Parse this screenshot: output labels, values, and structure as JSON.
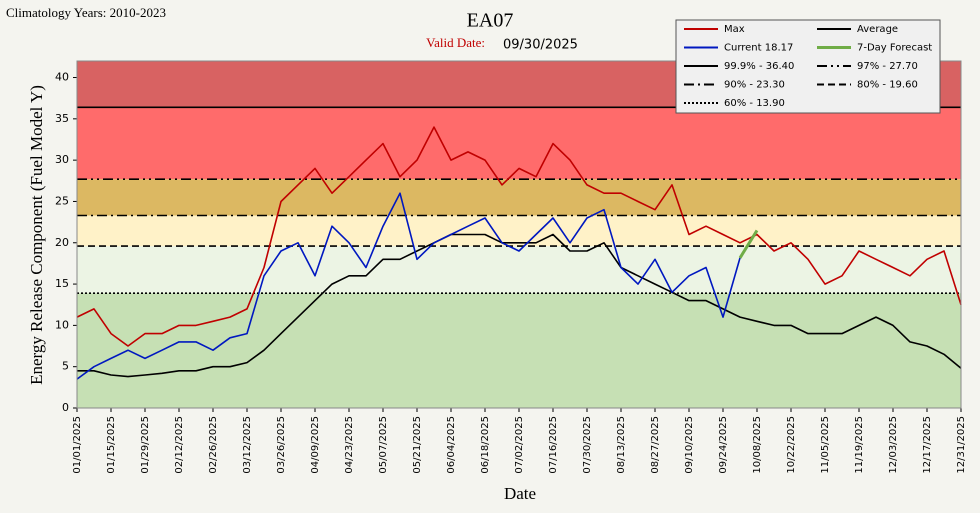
{
  "chart_data": {
    "type": "line",
    "corner_note": "Climatology Years: 2010-2023",
    "title": "EA07",
    "valid_date_label": "Valid Date:",
    "valid_date": "09/30/2025",
    "xlabel": "Date",
    "ylabel": "Energy Release Component (Fuel Model Y)",
    "x": [
      "01/01/2025",
      "01/08/2025",
      "01/15/2025",
      "01/22/2025",
      "01/29/2025",
      "02/05/2025",
      "02/12/2025",
      "02/19/2025",
      "02/26/2025",
      "03/05/2025",
      "03/12/2025",
      "03/19/2025",
      "03/26/2025",
      "04/02/2025",
      "04/09/2025",
      "04/16/2025",
      "04/23/2025",
      "04/30/2025",
      "05/07/2025",
      "05/14/2025",
      "05/21/2025",
      "05/28/2025",
      "06/04/2025",
      "06/11/2025",
      "06/18/2025",
      "06/25/2025",
      "07/02/2025",
      "07/09/2025",
      "07/16/2025",
      "07/23/2025",
      "07/30/2025",
      "08/06/2025",
      "08/13/2025",
      "08/20/2025",
      "08/27/2025",
      "09/03/2025",
      "09/10/2025",
      "09/17/2025",
      "09/24/2025",
      "10/01/2025",
      "10/08/2025",
      "10/15/2025",
      "10/22/2025",
      "10/29/2025",
      "11/05/2025",
      "11/12/2025",
      "11/19/2025",
      "11/26/2025",
      "12/03/2025",
      "12/10/2025",
      "12/17/2025",
      "12/24/2025",
      "12/31/2025"
    ],
    "xlim": [
      "01/01/2025",
      "12/31/2025"
    ],
    "xticks": [
      "01/01/2025",
      "01/15/2025",
      "01/29/2025",
      "02/12/2025",
      "02/26/2025",
      "03/12/2025",
      "03/26/2025",
      "04/09/2025",
      "04/23/2025",
      "05/07/2025",
      "05/21/2025",
      "06/04/2025",
      "06/18/2025",
      "07/02/2025",
      "07/16/2025",
      "07/30/2025",
      "08/13/2025",
      "08/27/2025",
      "09/10/2025",
      "09/24/2025",
      "10/08/2025",
      "10/22/2025",
      "11/05/2025",
      "11/19/2025",
      "12/03/2025",
      "12/17/2025",
      "12/31/2025"
    ],
    "ylim": [
      0,
      42
    ],
    "yticks": [
      0,
      5,
      10,
      15,
      20,
      25,
      30,
      35,
      40
    ],
    "band_colors": [
      "#c6e0b4",
      "#ecf4e4",
      "#fff2c8",
      "#dcb862",
      "#ff6b6b",
      "#d86262"
    ],
    "series": [
      {
        "name": "Max",
        "color": "#c00000",
        "width": 1.6,
        "values": [
          11,
          12,
          9,
          7.5,
          9,
          9,
          10,
          10,
          10.5,
          11,
          12,
          17,
          25,
          27,
          29,
          26,
          28,
          30,
          32,
          28,
          30,
          34,
          30,
          31,
          30,
          27,
          29,
          28,
          32,
          30,
          27,
          26,
          26,
          25,
          24,
          27,
          21,
          22,
          21,
          20,
          21,
          19,
          20,
          18,
          15,
          16,
          19,
          18,
          17,
          16,
          18,
          19,
          12.5
        ]
      },
      {
        "name": "Average",
        "color": "#000000",
        "width": 1.6,
        "values": [
          4.5,
          4.5,
          4,
          3.8,
          4,
          4.2,
          4.5,
          4.5,
          5,
          5,
          5.5,
          7,
          9,
          11,
          13,
          15,
          16,
          16,
          18,
          18,
          19,
          20,
          21,
          21,
          21,
          20,
          20,
          20,
          21,
          19,
          19,
          20,
          17,
          16,
          15,
          14,
          13,
          13,
          12,
          11,
          10.5,
          10,
          10,
          9,
          9,
          9,
          10,
          11,
          10,
          8,
          7.5,
          6.5,
          4.8
        ]
      },
      {
        "name": "Current  18.17",
        "color": "#0018c0",
        "width": 1.6,
        "values": [
          3.5,
          5,
          6,
          7,
          6,
          7,
          8,
          8,
          7,
          8.5,
          9,
          16,
          19,
          20,
          16,
          22,
          20,
          17,
          22,
          26,
          18,
          20,
          21,
          22,
          23,
          20,
          19,
          21,
          23,
          20,
          23,
          24,
          17,
          15,
          18,
          14,
          16,
          17,
          11,
          18.17,
          null,
          null,
          null,
          null,
          null,
          null,
          null,
          null,
          null,
          null,
          null,
          null,
          null
        ]
      },
      {
        "name": "7-Day Forecast",
        "color": "#70ad47",
        "width": 3,
        "values": [
          null,
          null,
          null,
          null,
          null,
          null,
          null,
          null,
          null,
          null,
          null,
          null,
          null,
          null,
          null,
          null,
          null,
          null,
          null,
          null,
          null,
          null,
          null,
          null,
          null,
          null,
          null,
          null,
          null,
          null,
          null,
          null,
          null,
          null,
          null,
          null,
          null,
          null,
          null,
          18.17,
          21.5,
          null,
          null,
          null,
          null,
          null,
          null,
          null,
          null,
          null,
          null,
          null,
          null
        ]
      }
    ],
    "percentiles": [
      {
        "label": "99.9% - 36.40",
        "value": 36.4,
        "dash": "none"
      },
      {
        "label": "97% - 27.70",
        "value": 27.7,
        "dash": "10 4 2 4 2 4"
      },
      {
        "label": "90% - 23.30",
        "value": 23.3,
        "dash": "10 4 2 4"
      },
      {
        "label": "80% - 19.60",
        "value": 19.6,
        "dash": "7 4"
      },
      {
        "label": "60% - 13.90",
        "value": 13.9,
        "dash": "2 2"
      }
    ]
  }
}
